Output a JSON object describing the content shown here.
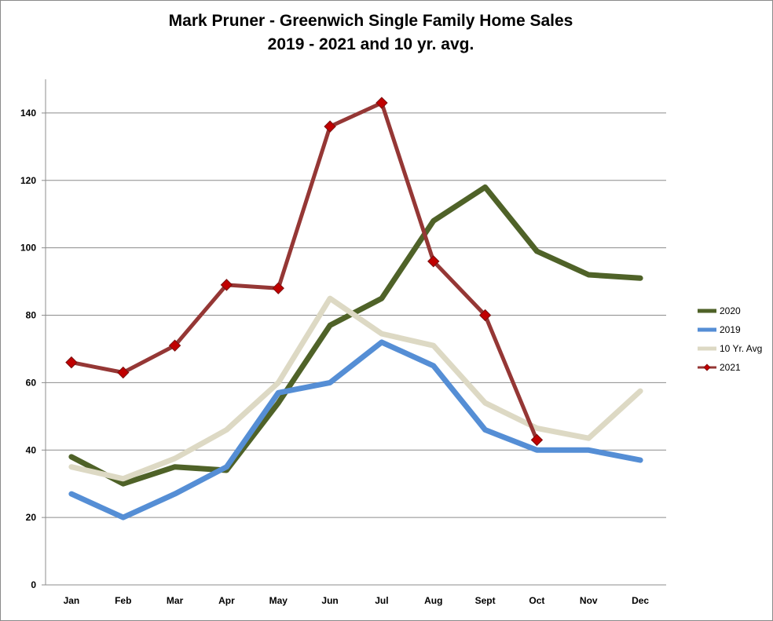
{
  "chart_data": {
    "type": "line",
    "title_line1": "Mark Pruner - Greenwich Single Family Home Sales",
    "title_line2": "2019 - 2021 and 10 yr. avg.",
    "xlabel": "",
    "ylabel": "",
    "categories": [
      "Jan",
      "Feb",
      "Mar",
      "Apr",
      "May",
      "Jun",
      "Jul",
      "Aug",
      "Sept",
      "Oct",
      "Nov",
      "Dec"
    ],
    "ylim": [
      0,
      150
    ],
    "yticks": [
      0,
      20,
      40,
      60,
      80,
      100,
      120,
      140
    ],
    "grid": true,
    "legend_position": "right",
    "series": [
      {
        "name": "2020",
        "color": "#4f6228",
        "marker": "none",
        "values": [
          38,
          30,
          35,
          34,
          54,
          77,
          85,
          108,
          118,
          99,
          92,
          91
        ]
      },
      {
        "name": "2019",
        "color": "#558ed5",
        "marker": "none",
        "values": [
          27,
          20,
          27,
          35,
          57,
          60,
          72,
          65,
          46,
          40,
          40,
          37
        ]
      },
      {
        "name": "10 Yr. Avg",
        "color": "#ddd9c4",
        "marker": "none",
        "values": [
          35,
          31.5,
          37.5,
          46,
          60,
          85,
          74.5,
          71,
          54,
          46.5,
          43.5,
          57.5
        ]
      },
      {
        "name": "2021",
        "color": "#953735",
        "marker": "diamond",
        "marker_color": "#c00000",
        "values": [
          66,
          63,
          71,
          89,
          88,
          136,
          143,
          96,
          80,
          43,
          null,
          null
        ]
      }
    ]
  }
}
